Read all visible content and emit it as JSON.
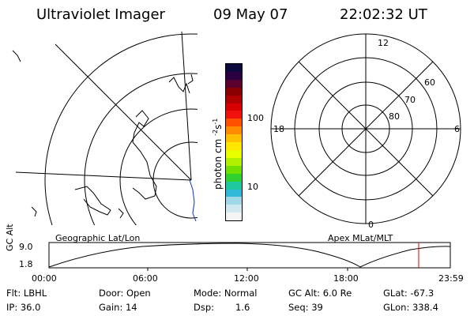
{
  "header": {
    "instrument": "Ultraviolet Imager",
    "date": "09 May 07",
    "time": "22:02:32 UT"
  },
  "colorbar": {
    "label": "photon cm",
    "label_sup1": "-2",
    "label_mid": "s",
    "label_sup2": "-1",
    "ticks": [
      "100",
      "10"
    ],
    "colors": [
      "#0a0a3c",
      "#2a0040",
      "#5a0030",
      "#8a0000",
      "#b00000",
      "#d80000",
      "#f01010",
      "#ff5000",
      "#ff8c00",
      "#ffc000",
      "#ffe600",
      "#e8ff00",
      "#b0f000",
      "#70e000",
      "#30d030",
      "#20c8a0",
      "#30b8d8",
      "#a0d8e8",
      "#d0e8f0",
      "#f4f4f4"
    ]
  },
  "left_map": {
    "label": "Geographic Lat/Lon"
  },
  "right_map": {
    "label": "Apex MLat/MLT",
    "mlt_labels": [
      "12",
      "18",
      "6",
      "0"
    ],
    "lat_labels": [
      "60",
      "70",
      "80"
    ]
  },
  "timeline": {
    "ylabel": "GC Alt",
    "y_ticks": [
      "9.0",
      "1.8"
    ],
    "x_ticks": [
      "00:00",
      "06:00",
      "12:00",
      "18:00",
      "23:59"
    ],
    "marker_color": "#e00000"
  },
  "status": {
    "filter": "Flt: LBHL",
    "door": "Door: Open",
    "mode": "Mode: Normal",
    "gc_alt": "GC Alt: 6.0 Re",
    "glat": "GLat: -67.3",
    "ip": "IP: 36.0",
    "gain": "Gain: 14",
    "dsp_label": "Dsp:",
    "dsp_value": "1.6",
    "seq": "Seq: 39",
    "glon": "GLon: 338.4"
  }
}
